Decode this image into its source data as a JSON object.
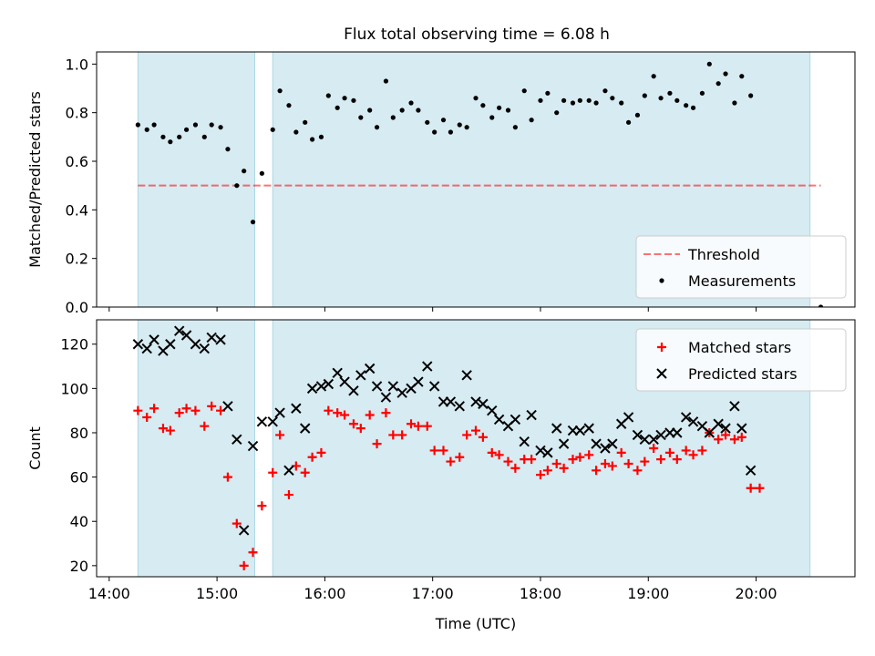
{
  "title": "Flux total observing time = 6.08 h",
  "colors": {
    "band": "#add8e6",
    "threshold": "#ff0000",
    "matched": "#ff0000",
    "predicted": "#000000",
    "measurement": "#000000"
  },
  "chart_data": [
    {
      "type": "scatter",
      "panel": "top",
      "ylabel": "Matched/Predicted stars",
      "ylim": [
        0.0,
        1.05
      ],
      "xlim": [
        "13:53",
        "20:55"
      ],
      "yticks": [
        0.0,
        0.2,
        0.4,
        0.6,
        0.8,
        1.0
      ],
      "ytick_labels": [
        "0.0",
        "0.2",
        "0.4",
        "0.6",
        "0.8",
        "1.0"
      ],
      "shaded_intervals": [
        [
          "14:16",
          "15:21"
        ],
        [
          "15:31",
          "20:30"
        ]
      ],
      "threshold": {
        "name": "Threshold",
        "value": 0.5,
        "x_range": [
          "14:16",
          "20:36"
        ],
        "style": "dashed"
      },
      "legend": {
        "position": "lower-right",
        "entries": [
          "Threshold",
          "Measurements"
        ]
      },
      "series": [
        {
          "name": "Measurements",
          "marker": "dot",
          "points": [
            [
              "14:16",
              0.75
            ],
            [
              "14:21",
              0.73
            ],
            [
              "14:25",
              0.75
            ],
            [
              "14:30",
              0.7
            ],
            [
              "14:34",
              0.68
            ],
            [
              "14:39",
              0.7
            ],
            [
              "14:43",
              0.73
            ],
            [
              "14:48",
              0.75
            ],
            [
              "14:53",
              0.7
            ],
            [
              "14:57",
              0.75
            ],
            [
              "15:02",
              0.74
            ],
            [
              "15:06",
              0.65
            ],
            [
              "15:11",
              0.5
            ],
            [
              "15:15",
              0.56
            ],
            [
              "15:20",
              0.35
            ],
            [
              "15:25",
              0.55
            ],
            [
              "15:31",
              0.73
            ],
            [
              "15:35",
              0.89
            ],
            [
              "15:40",
              0.83
            ],
            [
              "15:44",
              0.72
            ],
            [
              "15:49",
              0.76
            ],
            [
              "15:53",
              0.69
            ],
            [
              "15:58",
              0.7
            ],
            [
              "16:02",
              0.87
            ],
            [
              "16:07",
              0.82
            ],
            [
              "16:11",
              0.86
            ],
            [
              "16:16",
              0.85
            ],
            [
              "16:20",
              0.78
            ],
            [
              "16:25",
              0.81
            ],
            [
              "16:29",
              0.74
            ],
            [
              "16:34",
              0.93
            ],
            [
              "16:38",
              0.78
            ],
            [
              "16:43",
              0.81
            ],
            [
              "16:48",
              0.84
            ],
            [
              "16:52",
              0.81
            ],
            [
              "16:57",
              0.76
            ],
            [
              "17:01",
              0.72
            ],
            [
              "17:06",
              0.77
            ],
            [
              "17:10",
              0.72
            ],
            [
              "17:15",
              0.75
            ],
            [
              "17:19",
              0.74
            ],
            [
              "17:24",
              0.86
            ],
            [
              "17:28",
              0.83
            ],
            [
              "17:33",
              0.78
            ],
            [
              "17:37",
              0.82
            ],
            [
              "17:42",
              0.81
            ],
            [
              "17:46",
              0.74
            ],
            [
              "17:51",
              0.89
            ],
            [
              "17:55",
              0.77
            ],
            [
              "18:00",
              0.85
            ],
            [
              "18:04",
              0.88
            ],
            [
              "18:09",
              0.8
            ],
            [
              "18:13",
              0.85
            ],
            [
              "18:18",
              0.84
            ],
            [
              "18:22",
              0.85
            ],
            [
              "18:27",
              0.85
            ],
            [
              "18:31",
              0.84
            ],
            [
              "18:36",
              0.89
            ],
            [
              "18:40",
              0.86
            ],
            [
              "18:45",
              0.84
            ],
            [
              "18:49",
              0.76
            ],
            [
              "18:54",
              0.79
            ],
            [
              "18:58",
              0.87
            ],
            [
              "19:03",
              0.95
            ],
            [
              "19:07",
              0.86
            ],
            [
              "19:12",
              0.88
            ],
            [
              "19:16",
              0.85
            ],
            [
              "19:21",
              0.83
            ],
            [
              "19:25",
              0.82
            ],
            [
              "19:30",
              0.88
            ],
            [
              "19:34",
              1.0
            ],
            [
              "19:39",
              0.92
            ],
            [
              "19:43",
              0.96
            ],
            [
              "19:48",
              0.84
            ],
            [
              "19:52",
              0.95
            ],
            [
              "19:57",
              0.87
            ],
            [
              "20:36",
              0.0
            ]
          ]
        }
      ]
    },
    {
      "type": "scatter",
      "panel": "bottom",
      "xlabel": "Time (UTC)",
      "ylabel": "Count",
      "ylim": [
        15,
        131
      ],
      "xlim": [
        "13:53",
        "20:55"
      ],
      "yticks": [
        20,
        40,
        60,
        80,
        100,
        120
      ],
      "ytick_labels": [
        "20",
        "40",
        "60",
        "80",
        "100",
        "120"
      ],
      "xticks": [
        "14:00",
        "15:00",
        "16:00",
        "17:00",
        "18:00",
        "19:00",
        "20:00"
      ],
      "shaded_intervals": [
        [
          "14:16",
          "15:21"
        ],
        [
          "15:31",
          "20:30"
        ]
      ],
      "legend": {
        "position": "top-right",
        "entries": [
          "Matched stars",
          "Predicted stars"
        ]
      },
      "series": [
        {
          "name": "Matched stars",
          "marker": "plus",
          "points": [
            [
              "14:16",
              90
            ],
            [
              "14:21",
              87
            ],
            [
              "14:25",
              91
            ],
            [
              "14:30",
              82
            ],
            [
              "14:34",
              81
            ],
            [
              "14:39",
              89
            ],
            [
              "14:43",
              91
            ],
            [
              "14:48",
              90
            ],
            [
              "14:53",
              83
            ],
            [
              "14:57",
              92
            ],
            [
              "15:02",
              90
            ],
            [
              "15:06",
              60
            ],
            [
              "15:11",
              39
            ],
            [
              "15:15",
              20
            ],
            [
              "15:20",
              26
            ],
            [
              "15:25",
              47
            ],
            [
              "15:31",
              62
            ],
            [
              "15:35",
              79
            ],
            [
              "15:40",
              52
            ],
            [
              "15:44",
              65
            ],
            [
              "15:49",
              62
            ],
            [
              "15:53",
              69
            ],
            [
              "15:58",
              71
            ],
            [
              "16:02",
              90
            ],
            [
              "16:07",
              89
            ],
            [
              "16:11",
              88
            ],
            [
              "16:16",
              84
            ],
            [
              "16:20",
              82
            ],
            [
              "16:25",
              88
            ],
            [
              "16:29",
              75
            ],
            [
              "16:34",
              89
            ],
            [
              "16:38",
              79
            ],
            [
              "16:43",
              79
            ],
            [
              "16:48",
              84
            ],
            [
              "16:52",
              83
            ],
            [
              "16:57",
              83
            ],
            [
              "17:01",
              72
            ],
            [
              "17:06",
              72
            ],
            [
              "17:10",
              67
            ],
            [
              "17:15",
              69
            ],
            [
              "17:19",
              79
            ],
            [
              "17:24",
              81
            ],
            [
              "17:28",
              78
            ],
            [
              "17:33",
              71
            ],
            [
              "17:37",
              70
            ],
            [
              "17:42",
              67
            ],
            [
              "17:46",
              64
            ],
            [
              "17:51",
              68
            ],
            [
              "17:55",
              68
            ],
            [
              "18:00",
              61
            ],
            [
              "18:04",
              63
            ],
            [
              "18:09",
              66
            ],
            [
              "18:13",
              64
            ],
            [
              "18:18",
              68
            ],
            [
              "18:22",
              69
            ],
            [
              "18:27",
              70
            ],
            [
              "18:31",
              63
            ],
            [
              "18:36",
              66
            ],
            [
              "18:40",
              65
            ],
            [
              "18:45",
              71
            ],
            [
              "18:49",
              66
            ],
            [
              "18:54",
              63
            ],
            [
              "18:58",
              67
            ],
            [
              "19:03",
              73
            ],
            [
              "19:07",
              68
            ],
            [
              "19:12",
              71
            ],
            [
              "19:16",
              68
            ],
            [
              "19:21",
              72
            ],
            [
              "19:25",
              70
            ],
            [
              "19:30",
              72
            ],
            [
              "19:34",
              80
            ],
            [
              "19:39",
              77
            ],
            [
              "19:43",
              79
            ],
            [
              "19:48",
              77
            ],
            [
              "19:52",
              78
            ],
            [
              "19:57",
              55
            ],
            [
              "20:02",
              55
            ]
          ]
        },
        {
          "name": "Predicted stars",
          "marker": "x",
          "points": [
            [
              "14:16",
              120
            ],
            [
              "14:21",
              118
            ],
            [
              "14:25",
              122
            ],
            [
              "14:30",
              117
            ],
            [
              "14:34",
              120
            ],
            [
              "14:39",
              126
            ],
            [
              "14:43",
              124
            ],
            [
              "14:48",
              120
            ],
            [
              "14:53",
              118
            ],
            [
              "14:57",
              123
            ],
            [
              "15:02",
              122
            ],
            [
              "15:06",
              92
            ],
            [
              "15:11",
              77
            ],
            [
              "15:15",
              36
            ],
            [
              "15:20",
              74
            ],
            [
              "15:25",
              85
            ],
            [
              "15:31",
              85
            ],
            [
              "15:35",
              89
            ],
            [
              "15:40",
              63
            ],
            [
              "15:44",
              91
            ],
            [
              "15:49",
              82
            ],
            [
              "15:53",
              100
            ],
            [
              "15:58",
              101
            ],
            [
              "16:02",
              102
            ],
            [
              "16:07",
              107
            ],
            [
              "16:11",
              103
            ],
            [
              "16:16",
              99
            ],
            [
              "16:20",
              106
            ],
            [
              "16:25",
              109
            ],
            [
              "16:29",
              101
            ],
            [
              "16:34",
              96
            ],
            [
              "16:38",
              101
            ],
            [
              "16:43",
              98
            ],
            [
              "16:48",
              100
            ],
            [
              "16:52",
              103
            ],
            [
              "16:57",
              110
            ],
            [
              "17:01",
              101
            ],
            [
              "17:06",
              94
            ],
            [
              "17:10",
              94
            ],
            [
              "17:15",
              92
            ],
            [
              "17:19",
              106
            ],
            [
              "17:24",
              94
            ],
            [
              "17:28",
              93
            ],
            [
              "17:33",
              90
            ],
            [
              "17:37",
              86
            ],
            [
              "17:42",
              83
            ],
            [
              "17:46",
              86
            ],
            [
              "17:51",
              76
            ],
            [
              "17:55",
              88
            ],
            [
              "18:00",
              72
            ],
            [
              "18:04",
              71
            ],
            [
              "18:09",
              82
            ],
            [
              "18:13",
              75
            ],
            [
              "18:18",
              81
            ],
            [
              "18:22",
              81
            ],
            [
              "18:27",
              82
            ],
            [
              "18:31",
              75
            ],
            [
              "18:36",
              73
            ],
            [
              "18:40",
              75
            ],
            [
              "18:45",
              84
            ],
            [
              "18:49",
              87
            ],
            [
              "18:54",
              79
            ],
            [
              "18:58",
              77
            ],
            [
              "19:03",
              77
            ],
            [
              "19:07",
              79
            ],
            [
              "19:12",
              80
            ],
            [
              "19:16",
              80
            ],
            [
              "19:21",
              87
            ],
            [
              "19:25",
              85
            ],
            [
              "19:30",
              83
            ],
            [
              "19:34",
              80
            ],
            [
              "19:39",
              84
            ],
            [
              "19:43",
              82
            ],
            [
              "19:48",
              92
            ],
            [
              "19:52",
              82
            ],
            [
              "19:57",
              63
            ]
          ]
        }
      ]
    }
  ]
}
